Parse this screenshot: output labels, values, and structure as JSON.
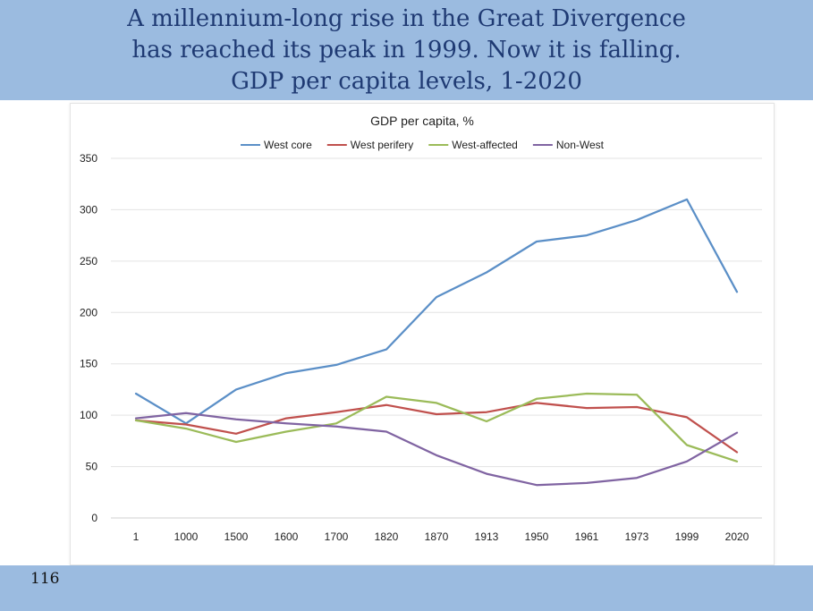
{
  "slide": {
    "title_lines": [
      "A millennium-long rise in the Great Divergence",
      "has reached its peak in 1999. Now it is falling.",
      "GDP per capita levels, 1-2020"
    ],
    "page_number": "116",
    "header_color": "#9bbbe0",
    "title_color": "#1f3a73"
  },
  "chart_data": {
    "type": "line",
    "title": "GDP per capita, %",
    "xlabel": "",
    "ylabel": "",
    "categories": [
      "1",
      "1000",
      "1500",
      "1600",
      "1700",
      "1820",
      "1870",
      "1913",
      "1950",
      "1961",
      "1973",
      "1999",
      "2020"
    ],
    "ylim": [
      0,
      350
    ],
    "yticks": [
      0,
      50,
      100,
      150,
      200,
      250,
      300,
      350
    ],
    "grid": true,
    "legend_position": "top",
    "series": [
      {
        "name": "West core",
        "color": "#5b8fc7",
        "values": [
          121,
          92,
          125,
          141,
          149,
          164,
          215,
          239,
          269,
          275,
          290,
          310,
          220
        ]
      },
      {
        "name": "West perifery",
        "color": "#c0504d",
        "values": [
          95,
          91,
          82,
          97,
          103,
          110,
          101,
          103,
          112,
          107,
          108,
          98,
          64
        ]
      },
      {
        "name": "West-affected",
        "color": "#9bbb59",
        "values": [
          95,
          87,
          74,
          84,
          92,
          118,
          112,
          94,
          116,
          121,
          120,
          71,
          55
        ]
      },
      {
        "name": "Non-West",
        "color": "#8064a2",
        "values": [
          97,
          102,
          96,
          92,
          89,
          84,
          61,
          43,
          32,
          34,
          39,
          55,
          83
        ]
      }
    ]
  }
}
